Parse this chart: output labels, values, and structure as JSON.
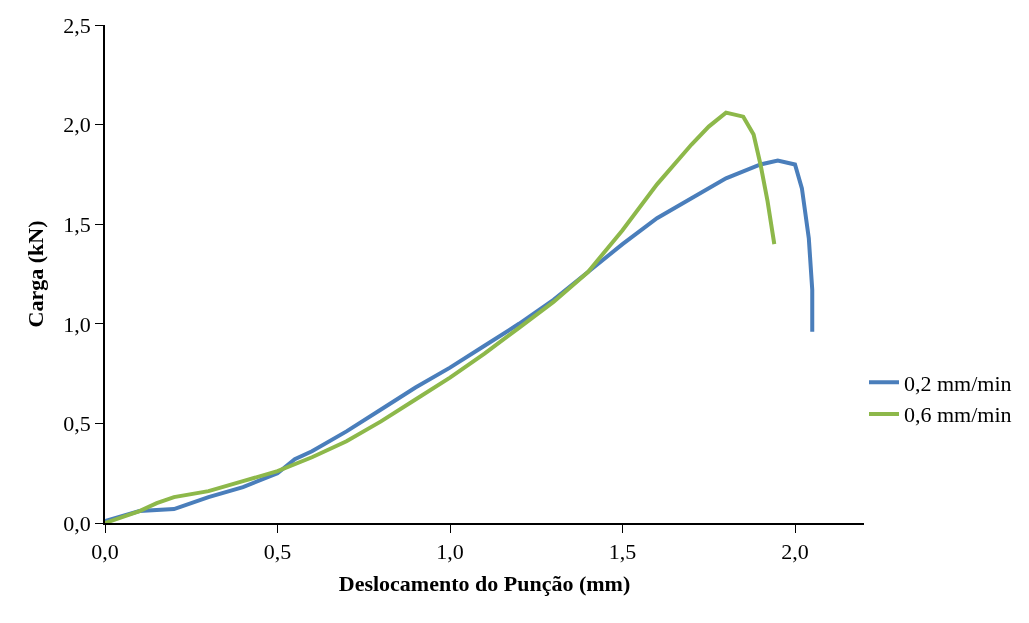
{
  "chart_data": {
    "type": "line",
    "xlabel": "Deslocamento do Punção (mm)",
    "ylabel": "Carga (kN)",
    "xlim": [
      0,
      2.2
    ],
    "xticks": [
      {
        "value": 0,
        "label": "0,0"
      },
      {
        "value": 0.5,
        "label": "0,5"
      },
      {
        "value": 1,
        "label": "1,0"
      },
      {
        "value": 1.5,
        "label": "1,5"
      },
      {
        "value": 2,
        "label": "2,0"
      }
    ],
    "ylim": [
      0,
      2.5
    ],
    "yticks": [
      {
        "value": 0,
        "label": "0,0"
      },
      {
        "value": 0.5,
        "label": "0,5"
      },
      {
        "value": 1,
        "label": "1,0"
      },
      {
        "value": 1.5,
        "label": "1,5"
      },
      {
        "value": 2,
        "label": "2,0"
      },
      {
        "value": 2.5,
        "label": "2,5"
      }
    ],
    "grid": false,
    "legend": "right",
    "marker": "none",
    "line_style": "solid",
    "series": [
      {
        "name": "0,2 mm/min",
        "color": "#4a7ebb",
        "x": [
          0,
          0.1,
          0.2,
          0.3,
          0.4,
          0.5,
          0.55,
          0.6,
          0.7,
          0.8,
          0.9,
          1.0,
          1.1,
          1.2,
          1.3,
          1.4,
          1.5,
          1.6,
          1.7,
          1.8,
          1.9,
          1.95,
          2.0,
          2.02,
          2.04,
          2.05,
          2.05
        ],
        "values": [
          0.01,
          0.06,
          0.07,
          0.13,
          0.18,
          0.25,
          0.32,
          0.36,
          0.46,
          0.57,
          0.68,
          0.78,
          0.89,
          1.0,
          1.12,
          1.26,
          1.4,
          1.53,
          1.63,
          1.73,
          1.8,
          1.82,
          1.8,
          1.68,
          1.43,
          1.17,
          0.96
        ]
      },
      {
        "name": "0,6 mm/min",
        "color": "#8db84a",
        "x": [
          0,
          0.1,
          0.15,
          0.2,
          0.3,
          0.4,
          0.5,
          0.6,
          0.7,
          0.8,
          0.9,
          1.0,
          1.1,
          1.2,
          1.3,
          1.4,
          1.5,
          1.6,
          1.7,
          1.75,
          1.8,
          1.85,
          1.88,
          1.9,
          1.92,
          1.94
        ],
        "values": [
          0,
          0.06,
          0.1,
          0.13,
          0.16,
          0.21,
          0.26,
          0.33,
          0.41,
          0.51,
          0.62,
          0.73,
          0.85,
          0.98,
          1.11,
          1.26,
          1.47,
          1.7,
          1.9,
          1.99,
          2.06,
          2.04,
          1.95,
          1.8,
          1.62,
          1.4
        ]
      }
    ]
  }
}
